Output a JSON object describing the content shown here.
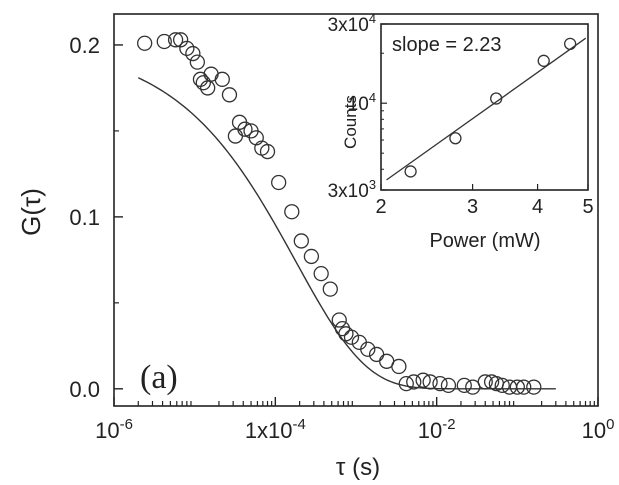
{
  "chart_data": [
    {
      "type": "scatter",
      "panel_label": "(a)",
      "ylabel": "G(τ)",
      "xlabel": "τ (s)",
      "x_scale": "log",
      "xlim": [
        1e-06,
        1
      ],
      "ylim": [
        -0.01,
        0.218
      ],
      "x_ticks": [
        {
          "value": 1e-06,
          "base": "10",
          "exp": "-6"
        },
        {
          "value": 0.0001,
          "base": "1x10",
          "exp": "-4"
        },
        {
          "value": 0.01,
          "base": "10",
          "exp": "-2"
        },
        {
          "value": 1,
          "base": "10",
          "exp": "0"
        }
      ],
      "y_ticks": [
        {
          "value": 0.0,
          "label": "0.0"
        },
        {
          "value": 0.1,
          "label": "0.1"
        },
        {
          "value": 0.2,
          "label": "0.2"
        }
      ],
      "fit_curve": {
        "G0": 0.201,
        "tau_D": 0.00018,
        "shape": "exp(-sqrt(tau/tau_D))",
        "x_range": [
          2e-06,
          0.3
        ]
      },
      "series": [
        {
          "marker": "open-circle",
          "x": [
            2.4e-06,
            4.2e-06,
            5.8e-06,
            6.7e-06,
            8e-06,
            9.5e-06,
            1.08e-05,
            1.18e-05,
            1.28e-05,
            1.45e-05,
            1.6e-05,
            2.2e-05,
            2.7e-05,
            3.2e-05,
            3.6e-05,
            4.2e-05,
            5e-05,
            5.8e-05,
            6.8e-05,
            8e-05,
            0.00011,
            0.00016,
            0.00021,
            0.00028,
            0.00037,
            0.00048,
            0.00062,
            0.00068,
            0.00075,
            0.00088,
            0.0011,
            0.0014,
            0.0018,
            0.0024,
            0.0034,
            0.0042,
            0.0052,
            0.0068,
            0.0083,
            0.011,
            0.014,
            0.022,
            0.028,
            0.04,
            0.048,
            0.055,
            0.065,
            0.08,
            0.1,
            0.12,
            0.16
          ],
          "y": [
            0.201,
            0.202,
            0.203,
            0.203,
            0.198,
            0.195,
            0.19,
            0.18,
            0.178,
            0.175,
            0.183,
            0.18,
            0.171,
            0.147,
            0.155,
            0.151,
            0.15,
            0.146,
            0.14,
            0.138,
            0.12,
            0.103,
            0.086,
            0.077,
            0.067,
            0.058,
            0.04,
            0.035,
            0.032,
            0.03,
            0.027,
            0.023,
            0.02,
            0.016,
            0.013,
            0.003,
            0.004,
            0.005,
            0.004,
            0.003,
            0.002,
            0.002,
            0.001,
            0.004,
            0.004,
            0.003,
            0.002,
            0.001,
            0.001,
            0.001,
            0.001
          ]
        }
      ]
    },
    {
      "type": "scatter",
      "annotation": "slope = 2.23",
      "xlabel": "Power (mW)",
      "ylabel": "Counts",
      "x_scale": "log",
      "y_scale": "log",
      "xlim": [
        2,
        5
      ],
      "ylim": [
        3000,
        30000
      ],
      "x_ticks": [
        {
          "value": 2,
          "label": "2"
        },
        {
          "value": 3,
          "label": "3"
        },
        {
          "value": 4,
          "label": "4"
        },
        {
          "value": 5,
          "label": "5"
        }
      ],
      "y_ticks": [
        {
          "value": 3000,
          "base": "3x10",
          "exp": "3"
        },
        {
          "value": 10000,
          "base": "10",
          "exp": "4"
        },
        {
          "value": 30000,
          "base": "3x10",
          "exp": "4"
        }
      ],
      "fit_line": {
        "slope": 2.23,
        "x_range": [
          2.05,
          4.95
        ]
      },
      "series": [
        {
          "marker": "open-circle",
          "x": [
            2.28,
            2.78,
            3.33,
            4.11,
            4.62
          ],
          "y": [
            3880,
            6150,
            10670,
            18000,
            22780
          ]
        }
      ]
    }
  ]
}
